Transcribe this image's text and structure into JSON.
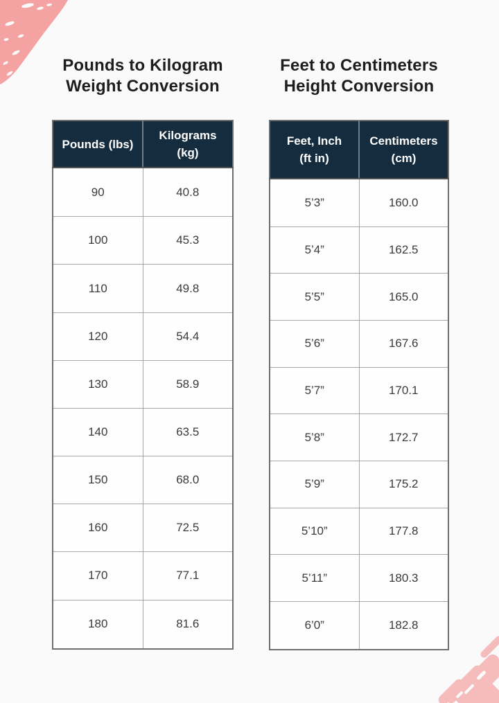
{
  "page": {
    "background": "#fbfafa",
    "header_bg": "#142c3d",
    "header_text_color": "#ffffff",
    "title_text_color": "#1d1d1d",
    "cell_text_color": "#3a3a3a",
    "border_outer": "#6e6e6e",
    "border_inner": "#a6a6a6",
    "decoration_top_left_color": "#f5a2a2",
    "decoration_bottom_right_color": "#f6bcbc",
    "decorations": {
      "top_left": "pink-brush-stroke",
      "bottom_right": "pink-brush-strokes"
    }
  },
  "chart_data": [
    {
      "type": "table",
      "title": "Pounds to Kilogram Weight Conversion",
      "title_lines": [
        "Pounds to Kilogram",
        "Weight Conversion"
      ],
      "columns": [
        "Pounds (lbs)",
        "Kilograms (kg)"
      ],
      "header_lines": [
        [
          "Pounds (lbs)"
        ],
        [
          "Kilograms",
          "(kg)"
        ]
      ],
      "rows": [
        [
          "90",
          "40.8"
        ],
        [
          "100",
          "45.3"
        ],
        [
          "110",
          "49.8"
        ],
        [
          "120",
          "54.4"
        ],
        [
          "130",
          "58.9"
        ],
        [
          "140",
          "63.5"
        ],
        [
          "150",
          "68.0"
        ],
        [
          "160",
          "72.5"
        ],
        [
          "170",
          "77.1"
        ],
        [
          "180",
          "81.6"
        ]
      ]
    },
    {
      "type": "table",
      "title": "Feet to Centimeters Height Conversion",
      "title_lines": [
        "Feet to Centimeters",
        "Height Conversion"
      ],
      "columns": [
        "Feet, Inch (ft in)",
        "Centimeters (cm)"
      ],
      "header_lines": [
        [
          "Feet, Inch",
          "(ft in)"
        ],
        [
          "Centimeters",
          "(cm)"
        ]
      ],
      "rows": [
        [
          "5’3”",
          "160.0"
        ],
        [
          "5’4”",
          "162.5"
        ],
        [
          "5’5”",
          "165.0"
        ],
        [
          "5’6”",
          "167.6"
        ],
        [
          "5’7”",
          "170.1"
        ],
        [
          "5’8”",
          "172.7"
        ],
        [
          "5’9”",
          "175.2"
        ],
        [
          "5’10”",
          "177.8"
        ],
        [
          "5’11”",
          "180.3"
        ],
        [
          "6’0”",
          "182.8"
        ]
      ]
    }
  ]
}
